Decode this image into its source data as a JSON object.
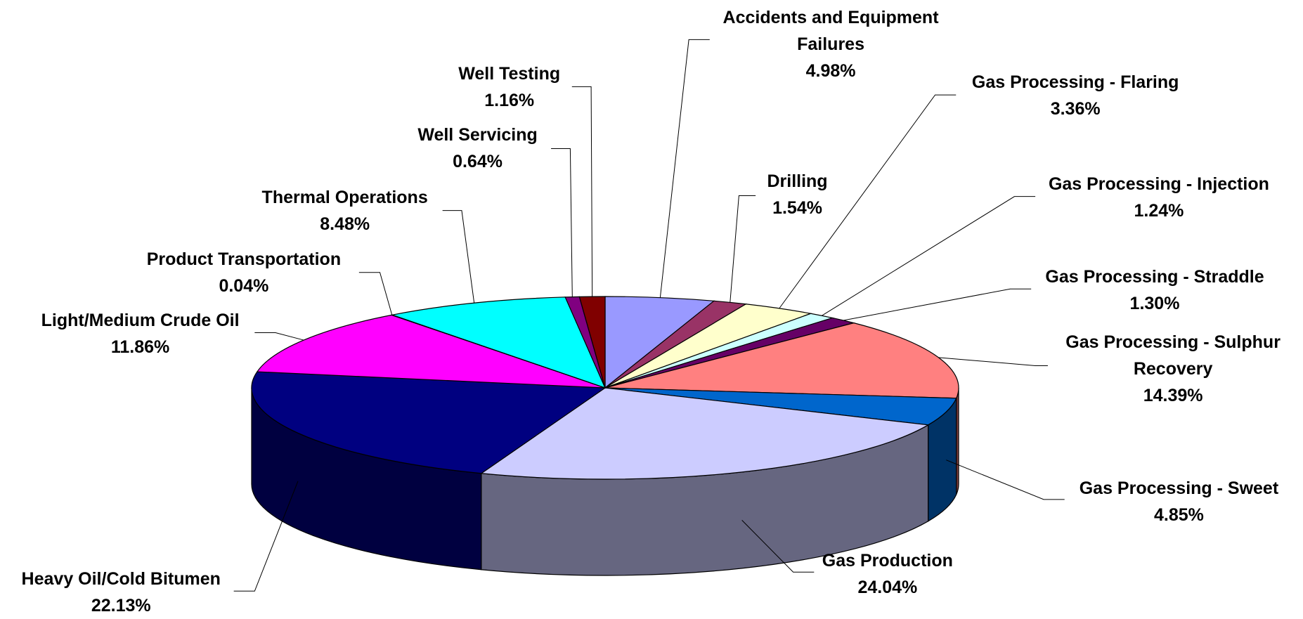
{
  "chart_data": {
    "type": "pie",
    "categories": [
      "Accidents and Equipment Failures",
      "Drilling",
      "Gas Processing - Flaring",
      "Gas Processing - Injection",
      "Gas Processing - Straddle",
      "Gas Processing - Sulphur Recovery",
      "Gas Processing - Sweet",
      "Gas Production",
      "Heavy Oil/Cold Bitumen",
      "Light/Medium Crude Oil",
      "Product Transportation",
      "Thermal Operations",
      "Well Servicing",
      "Well Testing"
    ],
    "values": [
      4.98,
      1.54,
      3.36,
      1.24,
      1.3,
      14.39,
      4.85,
      24.04,
      22.13,
      11.86,
      0.04,
      8.48,
      0.64,
      1.16
    ],
    "value_labels": [
      "4.98%",
      "1.54%",
      "3.36%",
      "1.24%",
      "1.30%",
      "14.39%",
      "4.85%",
      "24.04%",
      "22.13%",
      "11.86%",
      "0.04%",
      "8.48%",
      "0.64%",
      "1.16%"
    ],
    "colors": [
      "#9999ff",
      "#993366",
      "#ffffcc",
      "#ccffff",
      "#660066",
      "#ff8080",
      "#0066cc",
      "#ccccff",
      "#000080",
      "#ff00ff",
      "#800080",
      "#00ffff",
      "#800080",
      "#800000"
    ]
  }
}
